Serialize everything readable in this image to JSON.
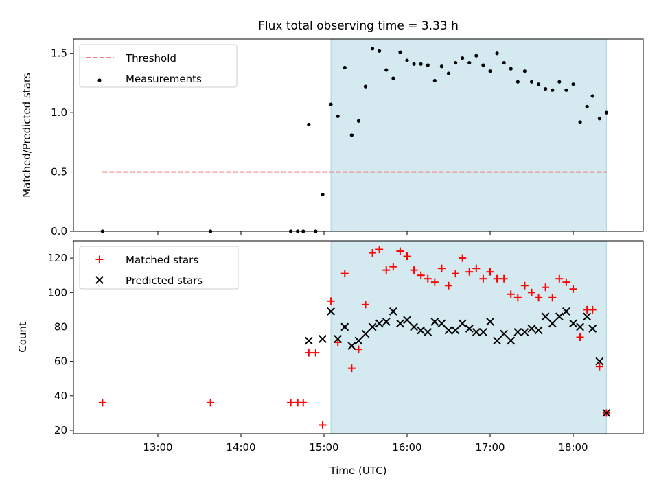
{
  "chart_data": {
    "title": "Flux total observing time = 3.33 h",
    "xlabel": "Time (UTC)",
    "x_ticks": [
      "13:00",
      "14:00",
      "15:00",
      "16:00",
      "17:00",
      "18:00"
    ],
    "shaded_region": {
      "x": [
        "15:05",
        "18:24"
      ],
      "color": "#d4eaf0"
    },
    "panels": [
      {
        "type": "scatter",
        "ylabel": "Matched/Predicted stars",
        "ylim": [
          0,
          1.62
        ],
        "y_ticks": [
          0.0,
          0.5,
          1.0,
          1.5
        ],
        "grid": false,
        "legend": "top-left",
        "series": [
          {
            "name": "Threshold",
            "type": "line",
            "style": "dashed",
            "color": "#f08080",
            "points": [
              [
                "12:20",
                0.5
              ],
              [
                "18:24",
                0.5
              ]
            ]
          },
          {
            "name": "Measurements",
            "type": "scatter",
            "marker": "dot",
            "color": "#000000",
            "points": [
              [
                "12:20",
                0.0
              ],
              [
                "13:38",
                0.0
              ],
              [
                "14:36",
                0.0
              ],
              [
                "14:41",
                0.0
              ],
              [
                "14:45",
                0.0
              ],
              [
                "14:49",
                0.9
              ],
              [
                "14:54",
                0.0
              ],
              [
                "14:59",
                0.31
              ],
              [
                "15:05",
                1.07
              ],
              [
                "15:10",
                0.97
              ],
              [
                "15:15",
                1.38
              ],
              [
                "15:20",
                0.81
              ],
              [
                "15:25",
                0.93
              ],
              [
                "15:30",
                1.22
              ],
              [
                "15:35",
                1.54
              ],
              [
                "15:40",
                1.52
              ],
              [
                "15:45",
                1.36
              ],
              [
                "15:50",
                1.29
              ],
              [
                "15:55",
                1.51
              ],
              [
                "16:00",
                1.44
              ],
              [
                "16:05",
                1.41
              ],
              [
                "16:10",
                1.41
              ],
              [
                "16:15",
                1.4
              ],
              [
                "16:20",
                1.27
              ],
              [
                "16:25",
                1.39
              ],
              [
                "16:30",
                1.33
              ],
              [
                "16:35",
                1.42
              ],
              [
                "16:40",
                1.46
              ],
              [
                "16:45",
                1.42
              ],
              [
                "16:50",
                1.48
              ],
              [
                "16:55",
                1.4
              ],
              [
                "17:00",
                1.35
              ],
              [
                "17:05",
                1.5
              ],
              [
                "17:10",
                1.42
              ],
              [
                "17:15",
                1.37
              ],
              [
                "17:20",
                1.26
              ],
              [
                "17:25",
                1.35
              ],
              [
                "17:30",
                1.26
              ],
              [
                "17:35",
                1.24
              ],
              [
                "17:40",
                1.2
              ],
              [
                "17:45",
                1.19
              ],
              [
                "17:50",
                1.26
              ],
              [
                "17:55",
                1.19
              ],
              [
                "18:00",
                1.24
              ],
              [
                "18:05",
                0.92
              ],
              [
                "18:10",
                1.05
              ],
              [
                "18:14",
                1.14
              ],
              [
                "18:19",
                0.95
              ],
              [
                "18:24",
                1.0
              ]
            ]
          }
        ]
      },
      {
        "type": "scatter",
        "ylabel": "Count",
        "ylim": [
          18,
          130
        ],
        "y_ticks": [
          20,
          40,
          60,
          80,
          100,
          120
        ],
        "grid": false,
        "legend": "top-left",
        "series": [
          {
            "name": "Matched stars",
            "marker": "plus",
            "color": "#ff0000",
            "points": [
              [
                "12:20",
                36
              ],
              [
                "13:38",
                36
              ],
              [
                "14:36",
                36
              ],
              [
                "14:41",
                36
              ],
              [
                "14:45",
                36
              ],
              [
                "14:49",
                65
              ],
              [
                "14:54",
                65
              ],
              [
                "14:59",
                23
              ],
              [
                "15:05",
                95
              ],
              [
                "15:10",
                71
              ],
              [
                "15:15",
                111
              ],
              [
                "15:20",
                56
              ],
              [
                "15:25",
                67
              ],
              [
                "15:30",
                93
              ],
              [
                "15:35",
                123
              ],
              [
                "15:40",
                125
              ],
              [
                "15:45",
                113
              ],
              [
                "15:50",
                115
              ],
              [
                "15:55",
                124
              ],
              [
                "16:00",
                121
              ],
              [
                "16:05",
                113
              ],
              [
                "16:10",
                110
              ],
              [
                "16:15",
                108
              ],
              [
                "16:20",
                106
              ],
              [
                "16:25",
                114
              ],
              [
                "16:30",
                104
              ],
              [
                "16:35",
                111
              ],
              [
                "16:40",
                120
              ],
              [
                "16:45",
                112
              ],
              [
                "16:50",
                114
              ],
              [
                "16:55",
                108
              ],
              [
                "17:00",
                112
              ],
              [
                "17:05",
                108
              ],
              [
                "17:10",
                108
              ],
              [
                "17:15",
                99
              ],
              [
                "17:20",
                97
              ],
              [
                "17:25",
                104
              ],
              [
                "17:30",
                100
              ],
              [
                "17:35",
                97
              ],
              [
                "17:40",
                103
              ],
              [
                "17:45",
                97
              ],
              [
                "17:50",
                108
              ],
              [
                "17:55",
                106
              ],
              [
                "18:00",
                102
              ],
              [
                "18:05",
                74
              ],
              [
                "18:10",
                90
              ],
              [
                "18:14",
                90
              ],
              [
                "18:19",
                57
              ],
              [
                "18:24",
                30
              ]
            ]
          },
          {
            "name": "Predicted stars",
            "marker": "x",
            "color": "#000000",
            "points": [
              [
                "14:49",
                72
              ],
              [
                "14:59",
                73
              ],
              [
                "15:05",
                89
              ],
              [
                "15:10",
                73
              ],
              [
                "15:15",
                80
              ],
              [
                "15:20",
                69
              ],
              [
                "15:25",
                72
              ],
              [
                "15:30",
                76
              ],
              [
                "15:35",
                80
              ],
              [
                "15:40",
                82
              ],
              [
                "15:45",
                83
              ],
              [
                "15:50",
                89
              ],
              [
                "15:55",
                82
              ],
              [
                "16:00",
                84
              ],
              [
                "16:05",
                80
              ],
              [
                "16:10",
                78
              ],
              [
                "16:15",
                77
              ],
              [
                "16:20",
                83
              ],
              [
                "16:25",
                82
              ],
              [
                "16:30",
                78
              ],
              [
                "16:35",
                78
              ],
              [
                "16:40",
                82
              ],
              [
                "16:45",
                79
              ],
              [
                "16:50",
                77
              ],
              [
                "16:55",
                77
              ],
              [
                "17:00",
                83
              ],
              [
                "17:05",
                72
              ],
              [
                "17:10",
                76
              ],
              [
                "17:15",
                72
              ],
              [
                "17:20",
                77
              ],
              [
                "17:25",
                77
              ],
              [
                "17:30",
                79
              ],
              [
                "17:35",
                78
              ],
              [
                "17:40",
                86
              ],
              [
                "17:45",
                82
              ],
              [
                "17:50",
                86
              ],
              [
                "17:55",
                89
              ],
              [
                "18:00",
                82
              ],
              [
                "18:05",
                80
              ],
              [
                "18:10",
                86
              ],
              [
                "18:14",
                79
              ],
              [
                "18:19",
                60
              ],
              [
                "18:24",
                30
              ]
            ]
          }
        ]
      }
    ]
  }
}
